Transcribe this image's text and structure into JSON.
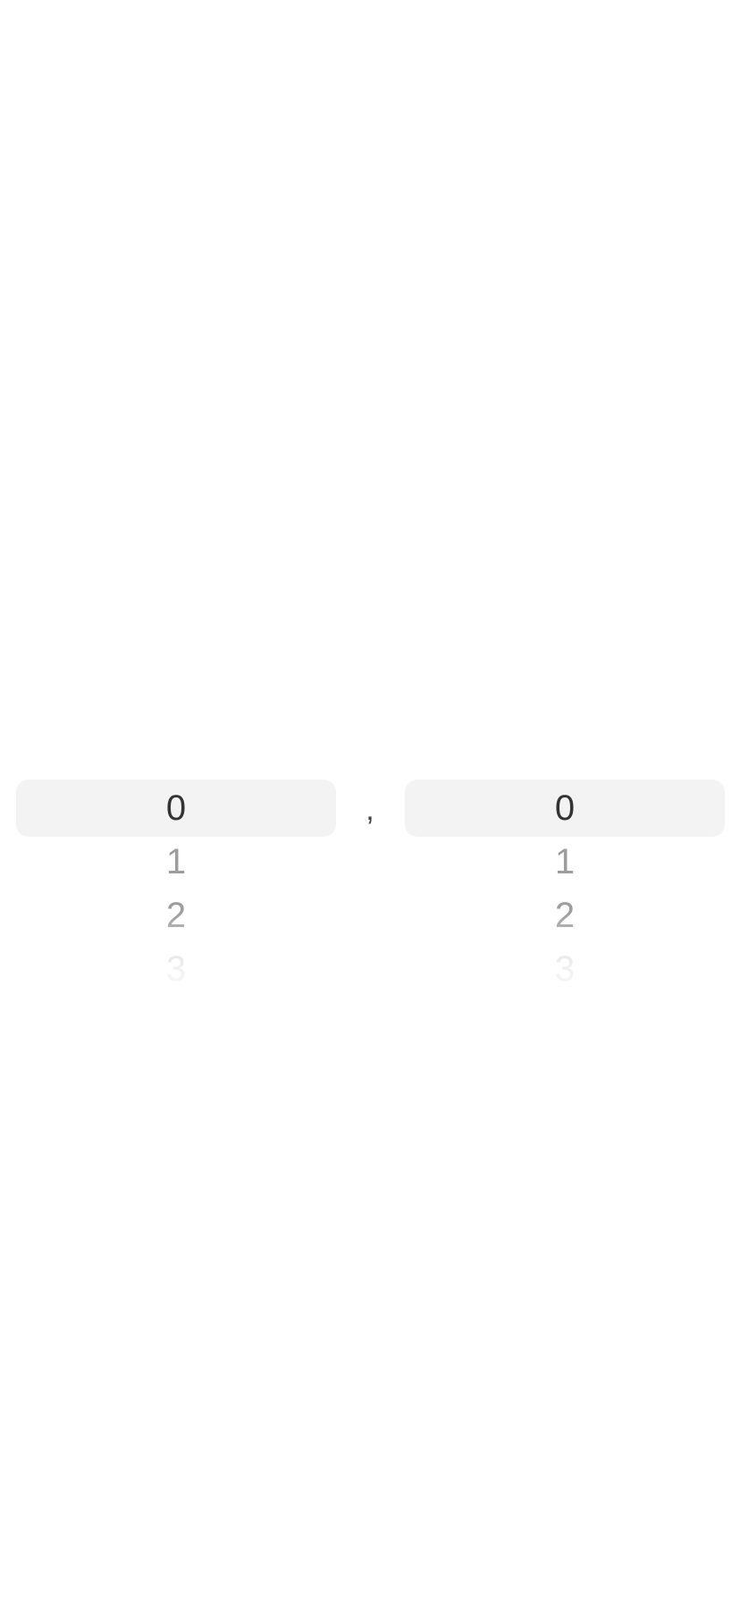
{
  "picker": {
    "separator": ",",
    "left_wheel": {
      "selected": "0",
      "items": [
        "0",
        "1",
        "2",
        "3"
      ]
    },
    "right_wheel": {
      "selected": "0",
      "items": [
        "0",
        "1",
        "2",
        "3"
      ]
    }
  }
}
